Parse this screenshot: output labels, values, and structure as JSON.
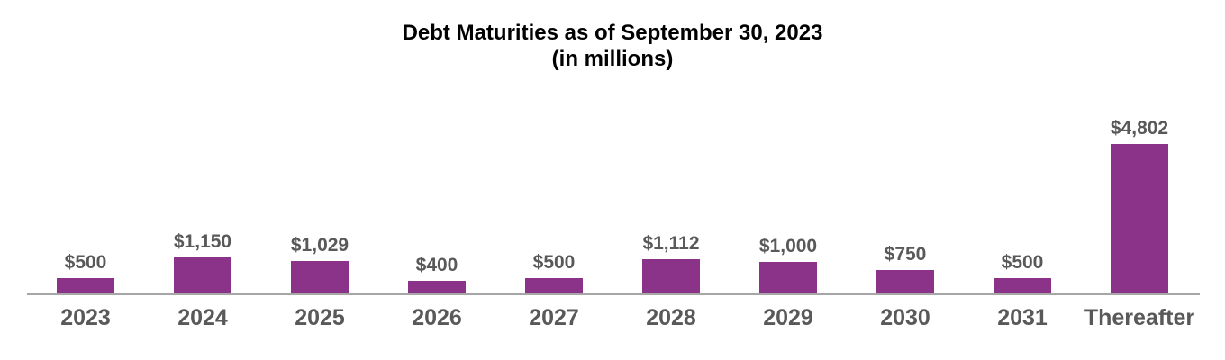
{
  "chart_data": {
    "type": "bar",
    "title": "Debt Maturities as of September 30, 2023",
    "subtitle": "(in millions)",
    "categories": [
      "2023",
      "2024",
      "2025",
      "2026",
      "2027",
      "2028",
      "2029",
      "2030",
      "2031",
      "Thereafter"
    ],
    "values": [
      500,
      1150,
      1029,
      400,
      500,
      1112,
      1000,
      750,
      500,
      4802
    ],
    "value_labels": [
      "$500",
      "$1,150",
      "$1,029",
      "$400",
      "$500",
      "$1,112",
      "$1,000",
      "$750",
      "$500",
      "$4,802"
    ],
    "xlabel": "",
    "ylabel": "",
    "ylim": [
      0,
      4802
    ],
    "grid": false,
    "legend": false,
    "colors": {
      "bar": "#8A3389",
      "value_label": "#595959",
      "tick_label": "#595959",
      "axis_line": "#A6A6A6",
      "title": "#000000",
      "background": "#FFFFFF"
    }
  }
}
